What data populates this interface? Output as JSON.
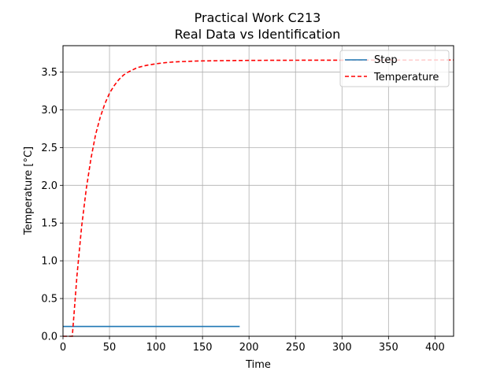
{
  "chart_data": {
    "type": "line",
    "title": "Practical Work C213",
    "subtitle": "Real Data vs Identification",
    "xlabel": "Time",
    "ylabel": "Temperature [°C]",
    "xlim": [
      0,
      420
    ],
    "ylim": [
      0,
      3.85
    ],
    "xticks": [
      0,
      50,
      100,
      150,
      200,
      250,
      300,
      350,
      400
    ],
    "yticks": [
      0.0,
      0.5,
      1.0,
      1.5,
      2.0,
      2.5,
      3.0,
      3.5
    ],
    "xtick_labels": [
      "0",
      "50",
      "100",
      "150",
      "200",
      "250",
      "300",
      "350",
      "400"
    ],
    "ytick_labels": [
      "0.0",
      "0.5",
      "1.0",
      "1.5",
      "2.0",
      "2.5",
      "3.0",
      "3.5"
    ],
    "grid": true,
    "legend_position": "top-right",
    "series": [
      {
        "name": "Step",
        "color": "#1f77b4",
        "style": "solid",
        "x": [
          0,
          190
        ],
        "y": [
          0.13,
          0.13
        ]
      },
      {
        "name": "Temperature",
        "color": "#ff0000",
        "style": "dashed",
        "x": [
          0,
          10,
          15,
          20,
          25,
          30,
          35,
          40,
          45,
          50,
          55,
          60,
          65,
          70,
          75,
          80,
          90,
          100,
          110,
          120,
          130,
          140,
          150,
          175,
          200,
          225,
          250,
          300,
          350,
          400,
          420
        ],
        "y": [
          0,
          0,
          0.8,
          1.45,
          1.95,
          2.35,
          2.67,
          2.9,
          3.08,
          3.22,
          3.32,
          3.4,
          3.46,
          3.5,
          3.53,
          3.56,
          3.59,
          3.61,
          3.625,
          3.635,
          3.64,
          3.645,
          3.648,
          3.652,
          3.655,
          3.656,
          3.657,
          3.658,
          3.659,
          3.66,
          3.66
        ]
      }
    ]
  }
}
